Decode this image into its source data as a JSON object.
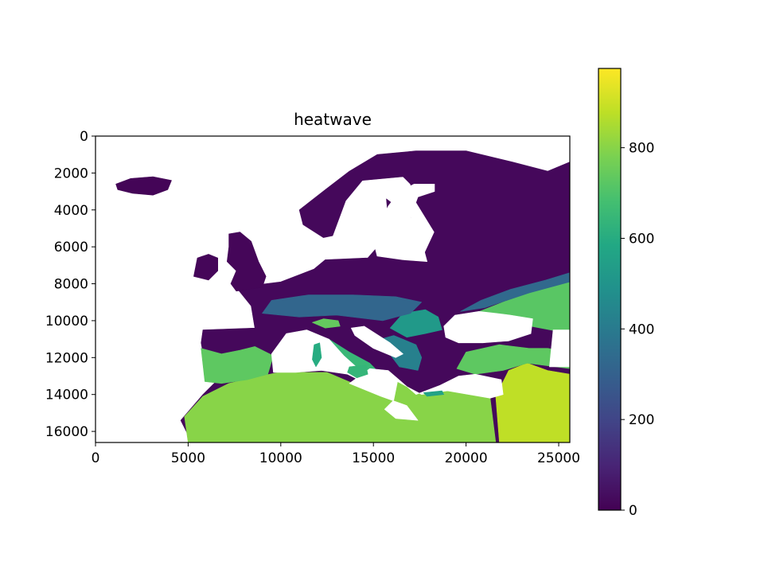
{
  "chart_data": {
    "type": "heatmap",
    "title": "heatwave",
    "xlabel": "",
    "ylabel": "",
    "xlim": [
      0,
      25600
    ],
    "ylim": [
      16600,
      0
    ],
    "grid": false,
    "colormap": "viridis",
    "x_ticks": [
      0,
      5000,
      10000,
      15000,
      20000,
      25000
    ],
    "x_tick_labels": [
      "0",
      "5000",
      "10000",
      "15000",
      "20000",
      "25000"
    ],
    "y_ticks": [
      0,
      2000,
      4000,
      6000,
      8000,
      10000,
      12000,
      14000,
      16000
    ],
    "y_tick_labels": [
      "0",
      "2000",
      "4000",
      "6000",
      "8000",
      "10000",
      "12000",
      "14000",
      "16000"
    ],
    "colorbar": {
      "range": [
        0,
        975
      ],
      "ticks": [
        0,
        200,
        400,
        600,
        800
      ],
      "tick_labels": [
        "0",
        "200",
        "400",
        "600",
        "800"
      ]
    },
    "regions": [
      {
        "name": "mainland",
        "value": 20,
        "points": [
          [
            5200,
            16600
          ],
          [
            4600,
            15400
          ],
          [
            5800,
            14000
          ],
          [
            6800,
            13000
          ],
          [
            6000,
            12900
          ],
          [
            5700,
            11200
          ],
          [
            5800,
            10500
          ],
          [
            8600,
            10400
          ],
          [
            8400,
            9200
          ],
          [
            7600,
            8200
          ],
          [
            10000,
            7900
          ],
          [
            11800,
            7200
          ],
          [
            12400,
            6700
          ],
          [
            14700,
            6600
          ],
          [
            15400,
            5800
          ],
          [
            15800,
            4500
          ],
          [
            15700,
            3400
          ],
          [
            17000,
            4400
          ],
          [
            17300,
            5700
          ],
          [
            17600,
            6700
          ],
          [
            18300,
            5200
          ],
          [
            17200,
            3400
          ],
          [
            17000,
            2600
          ],
          [
            16600,
            2200
          ],
          [
            14400,
            2400
          ],
          [
            13500,
            3500
          ],
          [
            12800,
            5400
          ],
          [
            12300,
            5500
          ],
          [
            11200,
            4800
          ],
          [
            11000,
            4000
          ],
          [
            12400,
            2900
          ],
          [
            13700,
            1900
          ],
          [
            15200,
            1000
          ],
          [
            17300,
            800
          ],
          [
            20000,
            800
          ],
          [
            22500,
            1400
          ],
          [
            24400,
            1900
          ],
          [
            25600,
            1400
          ],
          [
            25600,
            16600
          ]
        ]
      },
      {
        "name": "southeast-plain",
        "value": 720,
        "points": [
          [
            20200,
            9700
          ],
          [
            23000,
            8600
          ],
          [
            25600,
            7700
          ],
          [
            25600,
            10700
          ],
          [
            23500,
            10300
          ],
          [
            21800,
            10100
          ]
        ]
      },
      {
        "name": "north-africa",
        "value": 800,
        "points": [
          [
            5000,
            16600
          ],
          [
            4800,
            15200
          ],
          [
            5800,
            14100
          ],
          [
            7200,
            13400
          ],
          [
            8900,
            13000
          ],
          [
            9900,
            12800
          ],
          [
            11300,
            12800
          ],
          [
            12500,
            12800
          ],
          [
            13900,
            13400
          ],
          [
            15400,
            14100
          ],
          [
            16100,
            14300
          ],
          [
            16300,
            13300
          ],
          [
            17600,
            14000
          ],
          [
            19000,
            13800
          ],
          [
            20300,
            13900
          ],
          [
            21300,
            14200
          ],
          [
            21600,
            16600
          ]
        ]
      },
      {
        "name": "arabia",
        "value": 880,
        "points": [
          [
            21800,
            16600
          ],
          [
            21600,
            14100
          ],
          [
            22300,
            12700
          ],
          [
            23300,
            12300
          ],
          [
            24400,
            12700
          ],
          [
            25600,
            12900
          ],
          [
            25600,
            16600
          ]
        ]
      },
      {
        "name": "iberia",
        "value": 730,
        "points": [
          [
            5900,
            13300
          ],
          [
            5700,
            11500
          ],
          [
            6800,
            11800
          ],
          [
            7800,
            11600
          ],
          [
            8600,
            11400
          ],
          [
            9600,
            11900
          ],
          [
            9300,
            12900
          ],
          [
            8200,
            13200
          ],
          [
            6800,
            13400
          ]
        ]
      },
      {
        "name": "anatolia",
        "value": 730,
        "points": [
          [
            19500,
            12600
          ],
          [
            20000,
            11700
          ],
          [
            21800,
            11300
          ],
          [
            23400,
            11500
          ],
          [
            24400,
            11500
          ],
          [
            25600,
            11700
          ],
          [
            25600,
            12600
          ],
          [
            23300,
            12300
          ],
          [
            22000,
            12700
          ],
          [
            20500,
            12900
          ]
        ]
      },
      {
        "name": "italy-south",
        "value": 650,
        "points": [
          [
            12600,
            11000
          ],
          [
            13700,
            11700
          ],
          [
            14800,
            12300
          ],
          [
            15100,
            12600
          ],
          [
            14400,
            12800
          ],
          [
            13400,
            11900
          ],
          [
            12700,
            11400
          ]
        ]
      },
      {
        "name": "po-valley",
        "value": 740,
        "points": [
          [
            11700,
            10100
          ],
          [
            12300,
            9900
          ],
          [
            13100,
            10000
          ],
          [
            13200,
            10300
          ],
          [
            12400,
            10400
          ]
        ]
      },
      {
        "name": "balkans",
        "value": 420,
        "points": [
          [
            15400,
            11000
          ],
          [
            16100,
            10800
          ],
          [
            17300,
            11300
          ],
          [
            17600,
            12000
          ],
          [
            17400,
            12700
          ],
          [
            16400,
            12500
          ],
          [
            15800,
            11700
          ]
        ]
      },
      {
        "name": "danube-plain",
        "value": 520,
        "points": [
          [
            15900,
            10400
          ],
          [
            16600,
            9600
          ],
          [
            17800,
            9400
          ],
          [
            18500,
            9800
          ],
          [
            18700,
            10500
          ],
          [
            17800,
            10700
          ],
          [
            16800,
            10900
          ]
        ]
      },
      {
        "name": "central-warm",
        "value": 320,
        "points": [
          [
            9000,
            9600
          ],
          [
            9500,
            8900
          ],
          [
            11500,
            8600
          ],
          [
            13900,
            8600
          ],
          [
            16200,
            8700
          ],
          [
            17600,
            9000
          ],
          [
            17000,
            9600
          ],
          [
            15500,
            10000
          ],
          [
            13000,
            9700
          ],
          [
            11000,
            9800
          ]
        ]
      },
      {
        "name": "eastern-warm",
        "value": 330,
        "points": [
          [
            19700,
            9500
          ],
          [
            20800,
            8900
          ],
          [
            22400,
            8300
          ],
          [
            24300,
            7800
          ],
          [
            25600,
            7400
          ],
          [
            25600,
            7900
          ],
          [
            23400,
            8500
          ],
          [
            21000,
            9300
          ]
        ]
      }
    ],
    "water": [
      {
        "name": "mediterranean-west",
        "value": null,
        "points": [
          [
            9600,
            12800
          ],
          [
            9500,
            11800
          ],
          [
            10300,
            10700
          ],
          [
            11400,
            10500
          ],
          [
            12600,
            11000
          ],
          [
            13400,
            11900
          ],
          [
            14400,
            12800
          ],
          [
            15500,
            13200
          ],
          [
            14800,
            13500
          ],
          [
            13600,
            12900
          ],
          [
            12200,
            12700
          ],
          [
            10800,
            12800
          ]
        ]
      },
      {
        "name": "adriatic",
        "value": null,
        "points": [
          [
            13800,
            10400
          ],
          [
            14500,
            10300
          ],
          [
            15900,
            11200
          ],
          [
            16600,
            11800
          ],
          [
            16200,
            12000
          ],
          [
            15000,
            11500
          ],
          [
            14000,
            10800
          ]
        ]
      },
      {
        "name": "mediterranean-east",
        "value": null,
        "points": [
          [
            13700,
            13400
          ],
          [
            14800,
            12600
          ],
          [
            15800,
            12700
          ],
          [
            16500,
            13300
          ],
          [
            17300,
            14000
          ],
          [
            18600,
            13500
          ],
          [
            19600,
            13000
          ],
          [
            20500,
            12900
          ],
          [
            21900,
            13200
          ],
          [
            22000,
            14000
          ],
          [
            21300,
            14200
          ],
          [
            19000,
            13800
          ],
          [
            17600,
            14000
          ],
          [
            16300,
            13300
          ],
          [
            16100,
            14300
          ],
          [
            15600,
            14800
          ],
          [
            16200,
            15300
          ],
          [
            17400,
            15400
          ],
          [
            16800,
            14600
          ],
          [
            15400,
            14100
          ]
        ]
      },
      {
        "name": "black-sea",
        "value": null,
        "points": [
          [
            18800,
            10300
          ],
          [
            19400,
            9700
          ],
          [
            20700,
            9500
          ],
          [
            21600,
            9600
          ],
          [
            22400,
            9700
          ],
          [
            23600,
            9900
          ],
          [
            23500,
            10700
          ],
          [
            22300,
            11100
          ],
          [
            20900,
            11200
          ],
          [
            19600,
            11200
          ],
          [
            18900,
            10900
          ]
        ]
      },
      {
        "name": "caspian-gap",
        "value": null,
        "points": [
          [
            24700,
            10500
          ],
          [
            25600,
            10500
          ],
          [
            25600,
            12500
          ],
          [
            24500,
            12500
          ]
        ]
      },
      {
        "name": "baltic",
        "value": null,
        "points": [
          [
            15000,
            5700
          ],
          [
            15400,
            4600
          ],
          [
            15800,
            3800
          ],
          [
            16400,
            3000
          ],
          [
            17200,
            2600
          ],
          [
            18300,
            2600
          ],
          [
            18300,
            3000
          ],
          [
            17400,
            3300
          ],
          [
            17000,
            4400
          ],
          [
            17500,
            5300
          ],
          [
            17900,
            6800
          ],
          [
            16600,
            6700
          ],
          [
            15200,
            6500
          ]
        ]
      }
    ],
    "islands": [
      {
        "name": "iceland",
        "value": 10,
        "points": [
          [
            1100,
            2600
          ],
          [
            1900,
            2300
          ],
          [
            3100,
            2200
          ],
          [
            4100,
            2400
          ],
          [
            3900,
            2900
          ],
          [
            3100,
            3200
          ],
          [
            2000,
            3100
          ],
          [
            1200,
            2900
          ]
        ]
      },
      {
        "name": "britain",
        "value": 15,
        "points": [
          [
            7200,
            5300
          ],
          [
            7800,
            5200
          ],
          [
            8400,
            5700
          ],
          [
            8800,
            6800
          ],
          [
            9200,
            7600
          ],
          [
            9000,
            8200
          ],
          [
            7600,
            8400
          ],
          [
            7300,
            8000
          ],
          [
            7600,
            7300
          ],
          [
            7100,
            6800
          ],
          [
            7200,
            6000
          ]
        ]
      },
      {
        "name": "ireland",
        "value": 15,
        "points": [
          [
            5500,
            6600
          ],
          [
            6100,
            6400
          ],
          [
            6600,
            6600
          ],
          [
            6600,
            7300
          ],
          [
            6100,
            7800
          ],
          [
            5300,
            7600
          ]
        ]
      },
      {
        "name": "sardinia",
        "value": 600,
        "points": [
          [
            11800,
            11300
          ],
          [
            12100,
            11200
          ],
          [
            12200,
            12000
          ],
          [
            11900,
            12500
          ],
          [
            11700,
            12100
          ]
        ]
      },
      {
        "name": "sicily",
        "value": 640,
        "points": [
          [
            13700,
            12500
          ],
          [
            14600,
            12400
          ],
          [
            14700,
            12900
          ],
          [
            14100,
            13100
          ],
          [
            13600,
            12800
          ]
        ]
      },
      {
        "name": "crete",
        "value": 560,
        "points": [
          [
            17700,
            13900
          ],
          [
            18700,
            13800
          ],
          [
            18800,
            14000
          ],
          [
            17900,
            14100
          ]
        ]
      }
    ]
  }
}
